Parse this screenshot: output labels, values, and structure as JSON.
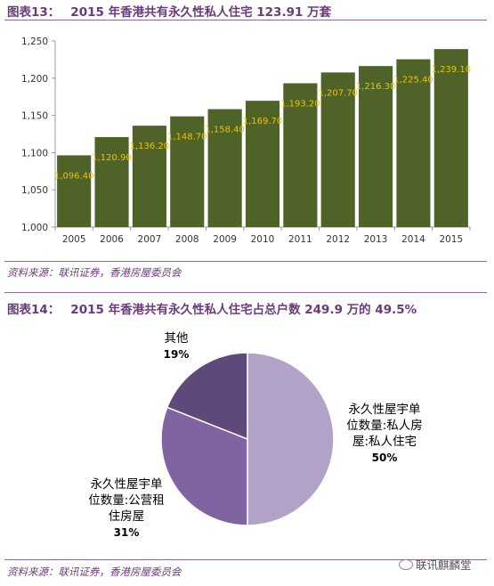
{
  "figure13": {
    "label": "图表13：",
    "title": "2015 年香港共有永久性私人住宅 123.91 万套",
    "source": "资料来源：联讯证券，香港房屋委员会"
  },
  "figure14": {
    "label": "图表14：",
    "title": "2015 年香港共有永久性私人住宅占总户数 249.9 万的 49.5%",
    "source": "资料来源：联讯证券，香港房屋委员会"
  },
  "watermark": "联讯麒麟堂",
  "colors": {
    "bar": "#4f6228",
    "bar_label": "#e8c400",
    "slice_private": "#b3a2c7",
    "slice_public": "#8064a2",
    "slice_other": "#5f497a",
    "title": "#6b3a7d"
  },
  "chart_data": [
    {
      "type": "bar",
      "title": "",
      "xlabel": "",
      "ylabel": "",
      "categories": [
        "2005",
        "2006",
        "2007",
        "2008",
        "2009",
        "2010",
        "2011",
        "2012",
        "2013",
        "2014",
        "2015"
      ],
      "values": [
        1096.4,
        1120.9,
        1136.2,
        1148.7,
        1158.4,
        1169.7,
        1193.2,
        1207.7,
        1216.3,
        1225.4,
        1239.1
      ],
      "data_labels": [
        "1,096.40",
        "1,120.90",
        "1,136.20",
        "1,148.70",
        "1,158.40",
        "1,169.70",
        "1,193.20",
        "1,207.70",
        "1,216.30",
        "1,225.40",
        "1,239.10"
      ],
      "ylim": [
        1000,
        1250
      ],
      "yticks": [
        1000,
        1050,
        1100,
        1150,
        1200,
        1250
      ],
      "ytick_labels": [
        "1,000",
        "1,050",
        "1,100",
        "1,150",
        "1,200",
        "1,250"
      ],
      "grid": false,
      "legend": "none"
    },
    {
      "type": "pie",
      "title": "",
      "slices": [
        {
          "label": "永久性屋宇单位数量:私人房屋:私人住宅",
          "label_lines": [
            "永久性屋宇单",
            "位数量:私人房",
            "屋:私人住宅"
          ],
          "value": 50,
          "pct_label": "50%",
          "color": "#b3a2c7"
        },
        {
          "label": "永久性屋宇单位数量:公营租住房屋",
          "label_lines": [
            "永久性屋宇单",
            "位数量:公营租",
            "住房屋"
          ],
          "value": 31,
          "pct_label": "31%",
          "color": "#8064a2"
        },
        {
          "label": "其他",
          "label_lines": [
            "其他"
          ],
          "value": 19,
          "pct_label": "19%",
          "color": "#5f497a"
        }
      ],
      "legend": "none"
    }
  ]
}
